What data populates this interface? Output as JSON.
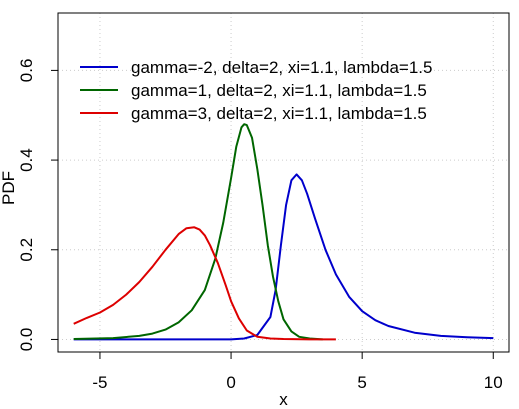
{
  "chart_data": {
    "type": "line",
    "title": "",
    "xlabel": "x",
    "ylabel": "PDF",
    "xlim": [
      -6.6,
      10.6
    ],
    "ylim": [
      -0.028,
      0.728
    ],
    "xticks": [
      -5,
      0,
      5,
      10
    ],
    "yticks": [
      0.0,
      0.2,
      0.4,
      0.6
    ],
    "xtick_labels": [
      "-5",
      "0",
      "5",
      "10"
    ],
    "ytick_labels": [
      "0.0",
      "0.2",
      "0.4",
      "0.6"
    ],
    "grid": true,
    "legend_position": "top",
    "series": [
      {
        "name": "gamma=-2, delta=2, xi=1.1, lambda=1.5",
        "color": "#0000cc",
        "x": [
          -6,
          -1,
          0,
          0.5,
          1,
          1.5,
          1.7,
          1.9,
          2.1,
          2.3,
          2.5,
          2.7,
          2.9,
          3.2,
          3.6,
          4,
          4.5,
          5,
          5.5,
          6,
          7,
          8,
          9,
          10
        ],
        "y": [
          0.0,
          0.0,
          0.0,
          0.002,
          0.01,
          0.05,
          0.11,
          0.21,
          0.3,
          0.355,
          0.368,
          0.355,
          0.325,
          0.27,
          0.2,
          0.145,
          0.095,
          0.063,
          0.043,
          0.03,
          0.015,
          0.008,
          0.005,
          0.003
        ]
      },
      {
        "name": "gamma=1, delta=2, xi=1.1, lambda=1.5",
        "color": "#006600",
        "x": [
          -6,
          -4.5,
          -3.5,
          -3,
          -2.5,
          -2,
          -1.5,
          -1,
          -0.6,
          -0.3,
          0,
          0.2,
          0.4,
          0.5,
          0.6,
          0.8,
          1,
          1.2,
          1.4,
          1.6,
          1.8,
          2,
          2.3,
          2.6,
          3,
          3.5
        ],
        "y": [
          0.001,
          0.003,
          0.008,
          0.013,
          0.022,
          0.038,
          0.065,
          0.11,
          0.18,
          0.26,
          0.36,
          0.43,
          0.473,
          0.48,
          0.478,
          0.45,
          0.38,
          0.3,
          0.21,
          0.14,
          0.085,
          0.045,
          0.018,
          0.006,
          0.002,
          0.0
        ]
      },
      {
        "name": "gamma=3, delta=2, xi=1.1, lambda=1.5",
        "color": "#dd0000",
        "x": [
          -6,
          -5.5,
          -5,
          -4.5,
          -4,
          -3.5,
          -3,
          -2.5,
          -2,
          -1.7,
          -1.4,
          -1.2,
          -1,
          -0.8,
          -0.5,
          -0.2,
          0,
          0.3,
          0.6,
          1,
          1.5,
          2,
          3,
          4
        ],
        "y": [
          0.035,
          0.048,
          0.06,
          0.077,
          0.1,
          0.128,
          0.162,
          0.2,
          0.235,
          0.248,
          0.25,
          0.245,
          0.232,
          0.21,
          0.17,
          0.12,
          0.085,
          0.047,
          0.02,
          0.006,
          0.002,
          0.001,
          0.0,
          0.0
        ]
      }
    ]
  }
}
